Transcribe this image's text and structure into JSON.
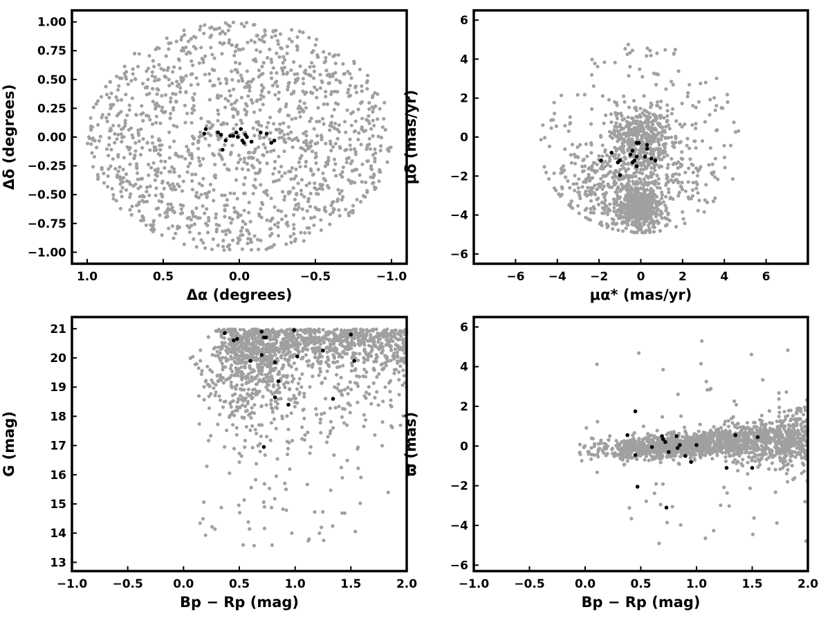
{
  "colors": {
    "field": "#a0a0a0",
    "members": "#000000",
    "axes": "#000000"
  },
  "chart_data": [
    {
      "type": "scatter",
      "xlabel": "Δα (degrees)",
      "ylabel": "Δδ (degrees)",
      "xlim": [
        1.1,
        -1.1
      ],
      "ylim": [
        -1.1,
        1.1
      ],
      "x_reversed": true,
      "xticks": [
        1.0,
        0.5,
        0.0,
        -0.5,
        -1.0
      ],
      "xtick_labels": [
        "1.0",
        "0.5",
        "0.0",
        "−0.5",
        "−1.0"
      ],
      "yticks": [
        1.0,
        0.75,
        0.5,
        0.25,
        0.0,
        -0.25,
        -0.5,
        -0.75,
        -1.0
      ],
      "ytick_labels": [
        "1.00",
        "0.75",
        "0.50",
        "0.25",
        "0.00",
        "−0.25",
        "−0.50",
        "−0.75",
        "−1.00"
      ],
      "grid": false,
      "series": [
        {
          "values": {
            "generator": "uniform-disk",
            "n": 1400,
            "radius": 1.0,
            "seed": 11
          }
        },
        {
          "points": [
            [
              0.23,
              0.03
            ],
            [
              0.22,
              0.07
            ],
            [
              0.14,
              0.04
            ],
            [
              0.12,
              0.02
            ],
            [
              0.11,
              -0.11
            ],
            [
              0.09,
              -0.03
            ],
            [
              0.06,
              0.01
            ],
            [
              0.04,
              0.01
            ],
            [
              0.02,
              0.04
            ],
            [
              0.01,
              0.0
            ],
            [
              -0.01,
              0.07
            ],
            [
              -0.02,
              -0.03
            ],
            [
              -0.03,
              -0.05
            ],
            [
              -0.04,
              0.02
            ],
            [
              -0.05,
              0.0
            ],
            [
              -0.08,
              -0.04
            ],
            [
              -0.14,
              0.04
            ],
            [
              -0.18,
              0.03
            ],
            [
              -0.21,
              -0.05
            ],
            [
              -0.23,
              -0.03
            ]
          ]
        }
      ]
    },
    {
      "type": "scatter",
      "xlabel": "μα* (mas/yr)",
      "ylabel": "μδ (mas/yr)",
      "xlim": [
        -8,
        8
      ],
      "ylim": [
        -6.5,
        6.5
      ],
      "xticks": [
        -6,
        -4,
        -2,
        0,
        2,
        4,
        6
      ],
      "xtick_labels": [
        "−6",
        "−4",
        "−2",
        "0",
        "2",
        "4",
        "6"
      ],
      "yticks": [
        6,
        4,
        2,
        0,
        -2,
        -4,
        -6
      ],
      "ytick_labels": [
        "6",
        "4",
        "2",
        "0",
        "−2",
        "−4",
        "−6"
      ],
      "grid": false,
      "series": [
        {
          "values": {
            "generator": "proper-motion-field",
            "n": 1500,
            "seed": 23
          }
        },
        {
          "points": [
            [
              -0.2,
              -0.3
            ],
            [
              -0.1,
              -0.3
            ],
            [
              0.3,
              -0.4
            ],
            [
              0.3,
              -0.6
            ],
            [
              -0.4,
              -0.7
            ],
            [
              -0.5,
              -0.9
            ],
            [
              -0.2,
              -1.0
            ],
            [
              0.2,
              -1.0
            ],
            [
              0.5,
              -1.1
            ],
            [
              0.7,
              -1.2
            ],
            [
              -0.3,
              -1.2
            ],
            [
              -1.0,
              -1.2
            ],
            [
              -1.1,
              -1.3
            ],
            [
              -0.4,
              -1.3
            ],
            [
              -0.2,
              -1.5
            ],
            [
              -1.9,
              -1.2
            ],
            [
              -1.4,
              -0.8
            ],
            [
              -1.0,
              -1.95
            ]
          ]
        }
      ]
    },
    {
      "type": "scatter",
      "xlabel": "Bp − Rp (mag)",
      "ylabel": "G (mag)",
      "xlim": [
        -1.0,
        2.0
      ],
      "ylim": [
        12.7,
        21.4
      ],
      "xticks": [
        -1.0,
        -0.5,
        0.0,
        0.5,
        1.0,
        1.5,
        2.0
      ],
      "xtick_labels": [
        "−1.0",
        "−0.5",
        "0.0",
        "0.5",
        "1.0",
        "1.5",
        "2.0"
      ],
      "yticks": [
        21,
        20,
        19,
        18,
        17,
        16,
        15,
        14,
        13
      ],
      "ytick_labels": [
        "21",
        "20",
        "19",
        "18",
        "17",
        "16",
        "15",
        "14",
        "13"
      ],
      "grid": false,
      "series": [
        {
          "values": {
            "generator": "colour-magnitude-field",
            "n": 1500,
            "seed": 37
          }
        },
        {
          "points": [
            [
              0.37,
              20.85
            ],
            [
              0.45,
              20.6
            ],
            [
              0.48,
              20.65
            ],
            [
              0.7,
              20.9
            ],
            [
              0.72,
              20.7
            ],
            [
              0.74,
              20.7
            ],
            [
              0.99,
              20.95
            ],
            [
              1.02,
              20.05
            ],
            [
              1.25,
              20.25
            ],
            [
              1.5,
              20.8
            ],
            [
              1.53,
              19.9
            ],
            [
              0.6,
              19.9
            ],
            [
              0.7,
              20.1
            ],
            [
              0.82,
              19.85
            ],
            [
              0.85,
              19.2
            ],
            [
              0.82,
              18.65
            ],
            [
              0.94,
              18.4
            ],
            [
              1.34,
              18.6
            ],
            [
              0.72,
              16.95
            ]
          ]
        }
      ]
    },
    {
      "type": "scatter",
      "xlabel": "Bp − Rp (mag)",
      "ylabel": "ϖ (mas)",
      "xlim": [
        -1.0,
        2.0
      ],
      "ylim": [
        -6.3,
        6.5
      ],
      "xticks": [
        -1.0,
        -0.5,
        0.0,
        0.5,
        1.0,
        1.5,
        2.0
      ],
      "xtick_labels": [
        "−1.0",
        "−0.5",
        "0.0",
        "0.5",
        "1.0",
        "1.5",
        "2.0"
      ],
      "yticks": [
        6,
        4,
        2,
        0,
        -2,
        -4,
        -6
      ],
      "ytick_labels": [
        "6",
        "4",
        "2",
        "0",
        "−2",
        "−4",
        "−6"
      ],
      "grid": false,
      "series": [
        {
          "values": {
            "generator": "parallax-field",
            "n": 1700,
            "seed": 53
          }
        },
        {
          "points": [
            [
              0.38,
              0.55
            ],
            [
              0.45,
              1.75
            ],
            [
              0.45,
              -0.45
            ],
            [
              0.47,
              -2.05
            ],
            [
              0.6,
              -0.05
            ],
            [
              0.69,
              0.5
            ],
            [
              0.7,
              0.35
            ],
            [
              0.72,
              0.2
            ],
            [
              0.75,
              -0.3
            ],
            [
              0.73,
              -3.1
            ],
            [
              0.82,
              0.5
            ],
            [
              0.85,
              0.05
            ],
            [
              0.9,
              -0.5
            ],
            [
              0.95,
              -0.8
            ],
            [
              1.0,
              0.05
            ],
            [
              1.27,
              -1.1
            ],
            [
              1.35,
              0.55
            ],
            [
              1.5,
              -1.1
            ],
            [
              1.55,
              0.45
            ],
            [
              0.83,
              -0.1
            ]
          ]
        }
      ]
    }
  ]
}
